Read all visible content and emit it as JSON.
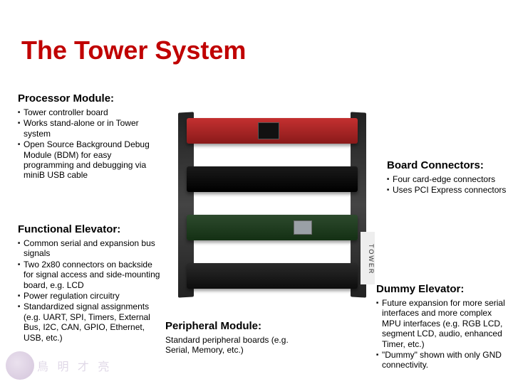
{
  "title": "The Tower System",
  "colors": {
    "title_color": "#c00000",
    "text_color": "#000000",
    "background": "#ffffff"
  },
  "typography": {
    "title_fontsize": 36,
    "heading_fontsize": 15,
    "body_fontsize": 12,
    "title_font_family": "Comic Sans MS"
  },
  "processor_module": {
    "heading": "Processor Module:",
    "items": [
      "Tower controller board",
      "Works stand-alone or in Tower system",
      "Open Source Background Debug Module (BDM)  for easy programming and debugging via miniB USB cable"
    ]
  },
  "functional_elevator": {
    "heading": "Functional Elevator:",
    "items": [
      "Common serial and expansion bus signals",
      "Two 2x80 connectors on backside for signal access and side-mounting board, e.g. LCD",
      "Power regulation circuitry",
      "Standardized signal assignments (e.g. UART, SPI, Timers, External Bus, I2C, CAN, GPIO, Ethernet, USB, etc.)"
    ]
  },
  "peripheral_module": {
    "heading": "Peripheral Module:",
    "text": "Standard peripheral boards (e.g. Serial, Memory, etc.)"
  },
  "board_connectors": {
    "heading": "Board Connectors:",
    "items": [
      "Four card-edge connectors",
      "Uses PCI Express connectors"
    ]
  },
  "dummy_elevator": {
    "heading": "Dummy Elevator:",
    "items": [
      "Future expansion for more serial interfaces and more complex MPU interfaces (e.g. RGB LCD, segment LCD, audio, enhanced Timer, etc.)",
      "\"Dummy\" shown with only GND connectivity."
    ]
  },
  "tower_image": {
    "side_label": "TOWER",
    "board_colors": [
      "#8a1a1a",
      "#000000",
      "#143014",
      "#0d0d0d"
    ],
    "rail_color": "#222222"
  },
  "footer": {
    "cjk_placeholder": "鳥  明  才  亮"
  }
}
